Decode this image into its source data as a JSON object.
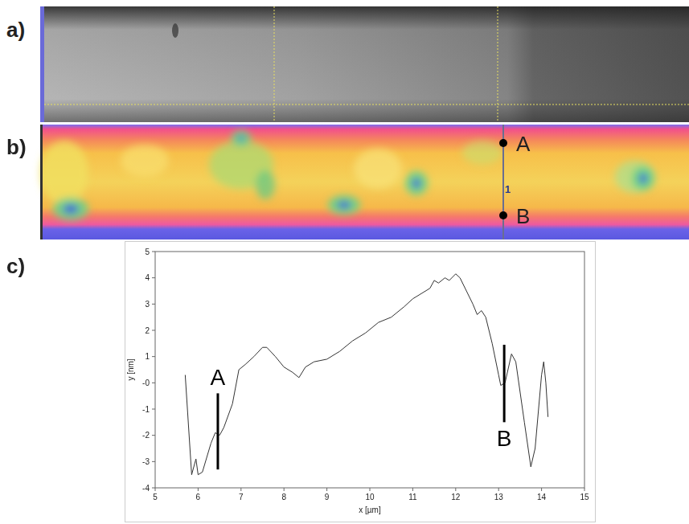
{
  "panels": {
    "a": {
      "label": "a)"
    },
    "b": {
      "label": "b)",
      "line_label": "1",
      "points": [
        "A",
        "B"
      ]
    },
    "c": {
      "label": "c)"
    }
  },
  "chart_data": {
    "type": "line",
    "x_label": "x [µm]",
    "y_label": "y [nm]",
    "x": [
      5.7,
      5.85,
      5.95,
      6.0,
      6.1,
      6.3,
      6.4,
      6.5,
      6.6,
      6.8,
      6.95,
      7.1,
      7.3,
      7.5,
      7.6,
      7.8,
      8.0,
      8.2,
      8.35,
      8.5,
      8.7,
      9.0,
      9.3,
      9.6,
      9.9,
      10.2,
      10.5,
      10.8,
      11.0,
      11.2,
      11.4,
      11.5,
      11.6,
      11.75,
      11.85,
      12.0,
      12.1,
      12.25,
      12.4,
      12.5,
      12.6,
      12.7,
      12.85,
      13.0,
      13.05,
      13.15,
      13.3,
      13.4,
      13.6,
      13.75,
      13.85,
      14.0,
      14.05,
      14.1,
      14.15
    ],
    "values": [
      0.3,
      -3.5,
      -2.9,
      -3.5,
      -3.4,
      -2.3,
      -1.9,
      -2.0,
      -1.7,
      -0.8,
      0.5,
      0.7,
      1.0,
      1.35,
      1.35,
      1.0,
      0.6,
      0.4,
      0.2,
      0.6,
      0.8,
      0.9,
      1.2,
      1.6,
      1.9,
      2.3,
      2.5,
      2.9,
      3.2,
      3.4,
      3.6,
      3.9,
      3.8,
      4.0,
      3.9,
      4.15,
      4.0,
      3.5,
      3.0,
      2.6,
      2.75,
      2.5,
      1.5,
      0.3,
      -0.1,
      0.0,
      1.1,
      0.8,
      -1.5,
      -3.2,
      -2.5,
      0.3,
      0.8,
      0.0,
      -1.3
    ],
    "color": "#333333",
    "xlim": [
      5,
      15
    ],
    "xticks": [
      5,
      6,
      7,
      8,
      9,
      10,
      11,
      12,
      13,
      14,
      15
    ],
    "ylim": [
      -4,
      5
    ],
    "yticks": [
      -4,
      -3,
      -2,
      -1,
      {
        "value": 0,
        "label": "-0"
      },
      1,
      2,
      3,
      4,
      5
    ],
    "grid": false,
    "annotations": [
      {
        "text": "A",
        "x": 6.46,
        "y_from": -3.3,
        "y_to": -0.4
      },
      {
        "text": "B",
        "x": 13.13,
        "y_from": -1.5,
        "y_to": 1.45
      }
    ]
  }
}
